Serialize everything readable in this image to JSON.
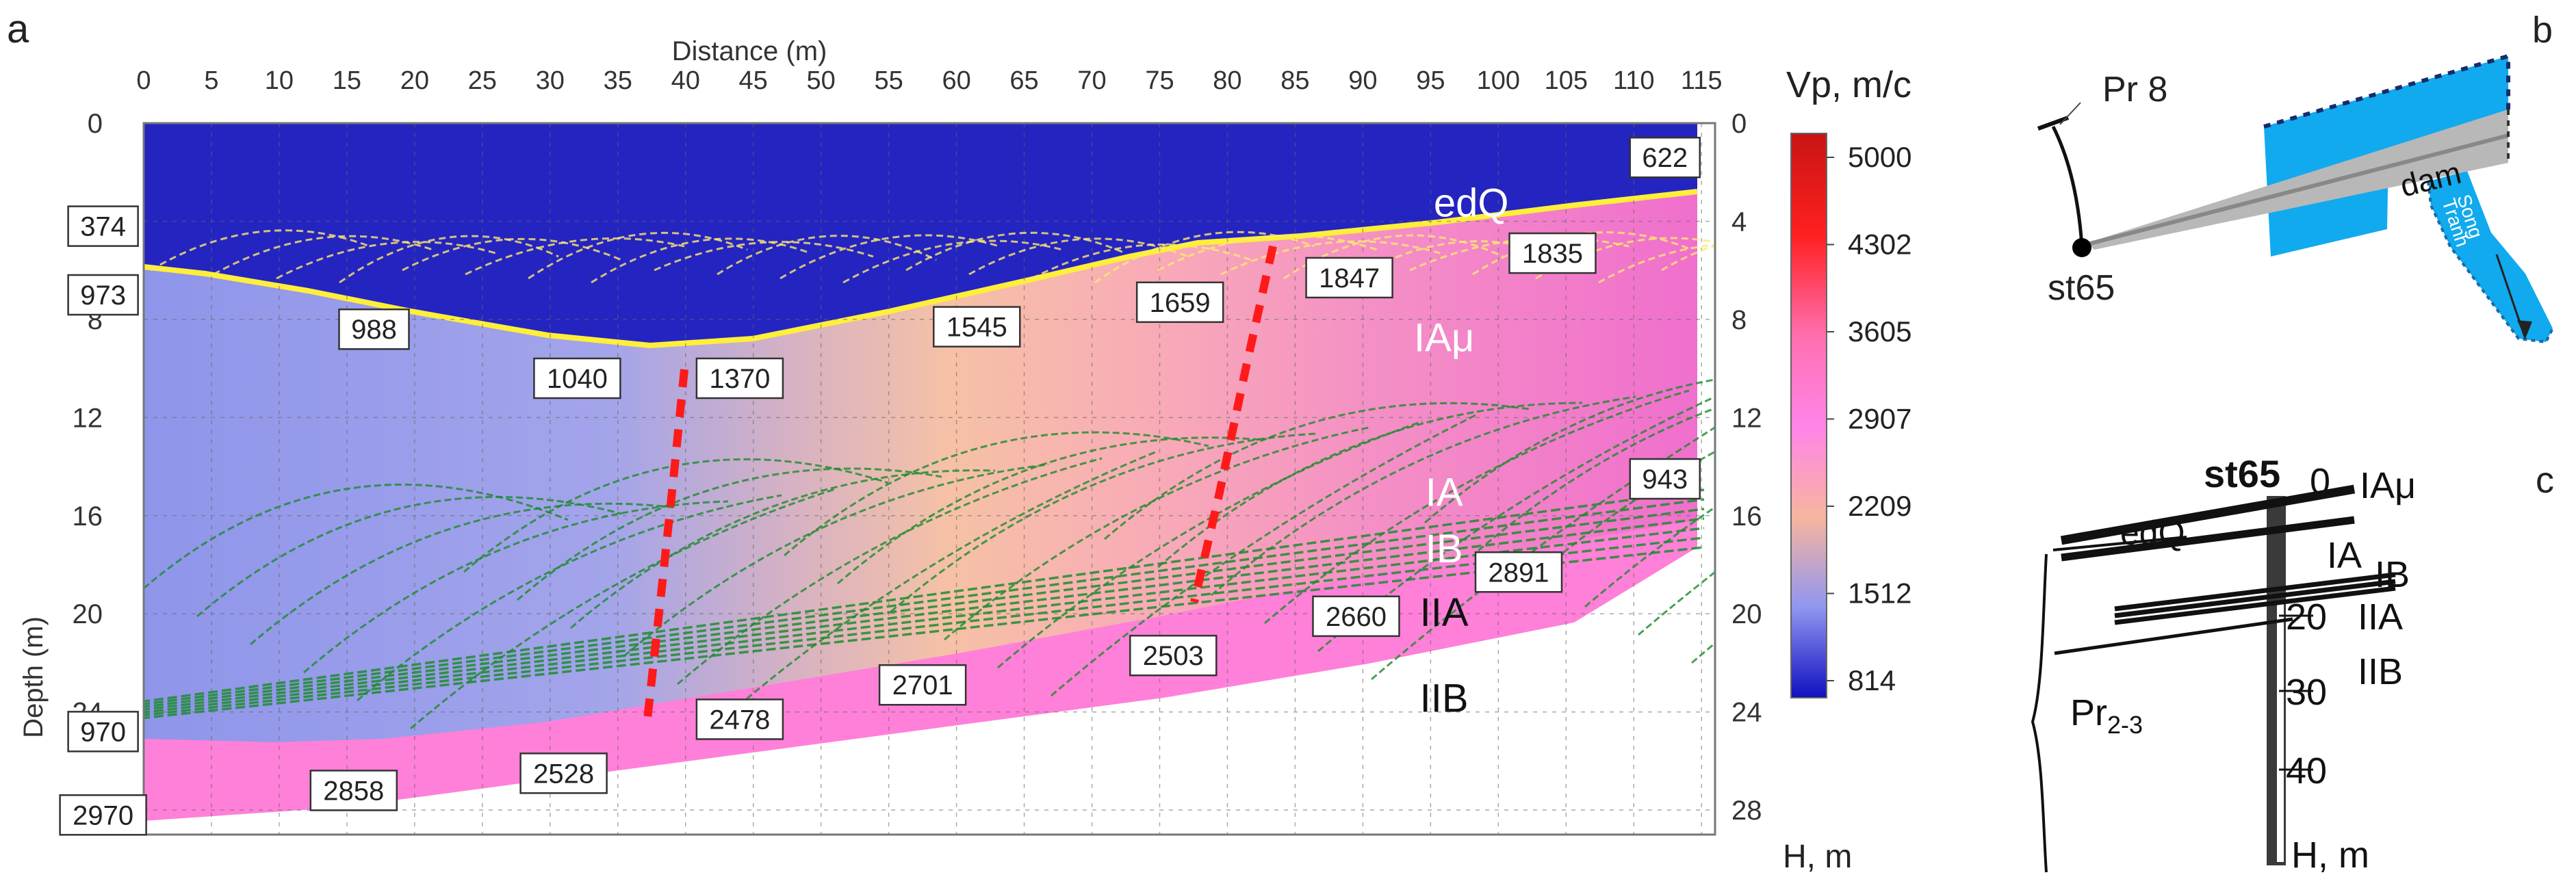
{
  "panel_a": {
    "letter": "a",
    "x_axis_title": "Distance (m)",
    "y_axis_title": "Depth (m)",
    "right_axis_title": "H, m",
    "x_ticks": [
      0,
      5,
      10,
      15,
      20,
      25,
      30,
      35,
      40,
      45,
      50,
      55,
      60,
      65,
      70,
      75,
      80,
      85,
      90,
      95,
      100,
      105,
      110,
      115
    ],
    "y_ticks": [
      0,
      4,
      8,
      12,
      16,
      20,
      24,
      28
    ],
    "velocity_boxes": [
      {
        "text": "374",
        "x": -3,
        "y": 4.2
      },
      {
        "text": "973",
        "x": -3,
        "y": 7.0
      },
      {
        "text": "988",
        "x": 17,
        "y": 8.4
      },
      {
        "text": "1040",
        "x": 32,
        "y": 10.4
      },
      {
        "text": "1370",
        "x": 44,
        "y": 10.4
      },
      {
        "text": "1545",
        "x": 61.5,
        "y": 8.3
      },
      {
        "text": "1659",
        "x": 76.5,
        "y": 7.3
      },
      {
        "text": "1847",
        "x": 89,
        "y": 6.3
      },
      {
        "text": "1835",
        "x": 104,
        "y": 5.3
      },
      {
        "text": "622",
        "x": 112.3,
        "y": 1.4
      },
      {
        "text": "943",
        "x": 112.3,
        "y": 14.5
      },
      {
        "text": "2891",
        "x": 101.5,
        "y": 18.3
      },
      {
        "text": "2660",
        "x": 89.5,
        "y": 20.1
      },
      {
        "text": "2503",
        "x": 76,
        "y": 21.7
      },
      {
        "text": "2701",
        "x": 57.5,
        "y": 22.9
      },
      {
        "text": "2478",
        "x": 44,
        "y": 24.3
      },
      {
        "text": "970",
        "x": -3,
        "y": 24.8
      },
      {
        "text": "2528",
        "x": 31,
        "y": 26.5
      },
      {
        "text": "2858",
        "x": 15.5,
        "y": 27.2
      },
      {
        "text": "2970",
        "x": -3,
        "y": 28.2
      }
    ],
    "layer_labels": [
      {
        "text": "edQ",
        "x": 98,
        "y": 3.8,
        "color": "#ffffff"
      },
      {
        "text": "IAμ",
        "x": 96,
        "y": 9.3,
        "color": "#ffffff"
      },
      {
        "text": "IA",
        "x": 96,
        "y": 15.6,
        "color": "#ffffff"
      },
      {
        "text": "IB",
        "x": 96,
        "y": 17.9,
        "color": "#ffffff"
      },
      {
        "text": "IIA",
        "x": 96,
        "y": 20.5,
        "color": "#111111"
      },
      {
        "text": "IIB",
        "x": 96,
        "y": 24.0,
        "color": "#111111"
      }
    ]
  },
  "colorbar": {
    "title": "Vp, m/c",
    "ticks": [
      "5000",
      "4302",
      "3605",
      "2907",
      "2209",
      "1512",
      "814"
    ],
    "colors": [
      "#c81414",
      "#ff2020",
      "#ff80ff",
      "#ff66cc",
      "#f6b8a8",
      "#9aa0ee",
      "#1010c0"
    ]
  },
  "panel_b": {
    "letter": "b",
    "profile_label": "Pr 8",
    "station_label": "st65",
    "dam_label": "dam",
    "river_label_1": "Song",
    "river_label_2": "Tranh"
  },
  "panel_c": {
    "letter": "c",
    "station_title": "st65",
    "edq_label": "edQ",
    "pr_label": "Pr",
    "pr_sub": "2-3",
    "layer_labels": [
      "IAμ",
      "IA",
      "IB",
      "IIA",
      "IIB"
    ],
    "depth_ticks": [
      "0",
      "20",
      "30",
      "40"
    ],
    "unit_label": "H, m"
  }
}
